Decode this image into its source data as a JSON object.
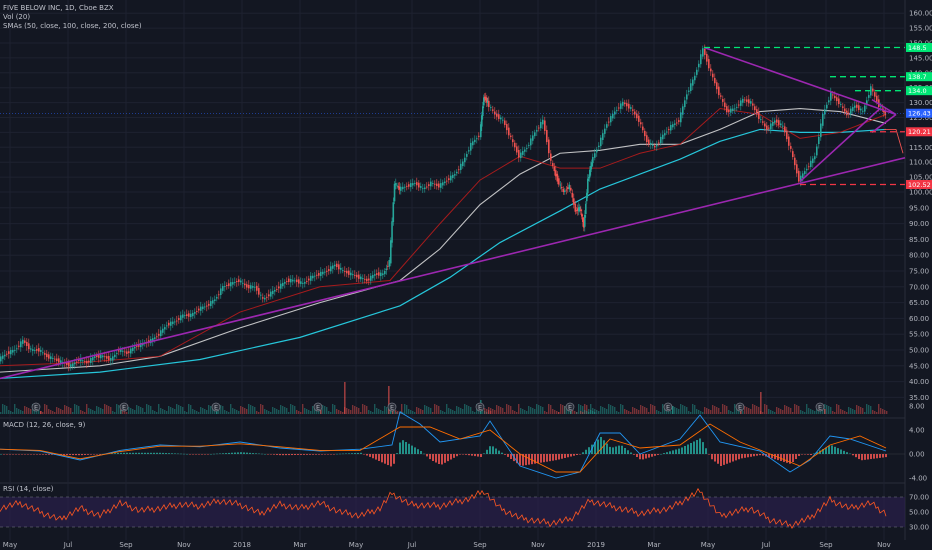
{
  "chart_data": [
    {
      "type": "candlestick",
      "title": "FIVE BELOW INC, 1D, Cboe BZX",
      "indicators": [
        "Vol (20)",
        "SMAs (50, close, 100, close, 200, close)"
      ],
      "x_ticks": [
        "May",
        "Jul",
        "Sep",
        "Nov",
        "2018",
        "Mar",
        "May",
        "Jul",
        "Sep",
        "Nov",
        "2019",
        "Mar",
        "May",
        "Jul",
        "Sep",
        "Nov"
      ],
      "y_ticks": [
        35,
        40,
        45,
        50,
        55,
        60,
        65,
        70,
        75,
        80,
        85,
        90,
        95,
        100,
        105,
        110,
        115,
        120,
        125,
        130,
        135,
        140,
        145,
        150,
        155,
        160
      ],
      "y_tick_labels": [
        "35.00",
        "40.00",
        "45.00",
        "50.00",
        "55.00",
        "60.00",
        "65.00",
        "70.00",
        "75.00",
        "80.00",
        "85.00",
        "90.00",
        "95.00",
        "100.00",
        "105.00",
        "110.00",
        "115.00",
        "120.00",
        "125.00",
        "130.00",
        "135.00",
        "140.00",
        "145.00",
        "150.00",
        "155.00",
        "160.00"
      ],
      "ylim": [
        32,
        161
      ],
      "price_path": [
        [
          0,
          47
        ],
        [
          8,
          49
        ],
        [
          16,
          50
        ],
        [
          24,
          53
        ],
        [
          32,
          50
        ],
        [
          40,
          50
        ],
        [
          48,
          48
        ],
        [
          56,
          47
        ],
        [
          64,
          46
        ],
        [
          72,
          45
        ],
        [
          80,
          47
        ],
        [
          88,
          46
        ],
        [
          96,
          48
        ],
        [
          104,
          48
        ],
        [
          112,
          47
        ],
        [
          120,
          50
        ],
        [
          128,
          49
        ],
        [
          136,
          51
        ],
        [
          144,
          52
        ],
        [
          152,
          53
        ],
        [
          160,
          55
        ],
        [
          168,
          58
        ],
        [
          176,
          59
        ],
        [
          184,
          61
        ],
        [
          192,
          61
        ],
        [
          200,
          63
        ],
        [
          208,
          64
        ],
        [
          216,
          66
        ],
        [
          224,
          70
        ],
        [
          232,
          71
        ],
        [
          240,
          72
        ],
        [
          248,
          70
        ],
        [
          256,
          70
        ],
        [
          264,
          66
        ],
        [
          272,
          68
        ],
        [
          280,
          70
        ],
        [
          288,
          72
        ],
        [
          296,
          72
        ],
        [
          304,
          71
        ],
        [
          312,
          73
        ],
        [
          320,
          74
        ],
        [
          328,
          75
        ],
        [
          336,
          77
        ],
        [
          344,
          75
        ],
        [
          352,
          74
        ],
        [
          360,
          73
        ],
        [
          368,
          72
        ],
        [
          376,
          74
        ],
        [
          384,
          74
        ],
        [
          390,
          78
        ],
        [
          395,
          103
        ],
        [
          400,
          101
        ],
        [
          408,
          102
        ],
        [
          416,
          103
        ],
        [
          424,
          101
        ],
        [
          432,
          103
        ],
        [
          440,
          102
        ],
        [
          448,
          104
        ],
        [
          456,
          106
        ],
        [
          464,
          110
        ],
        [
          472,
          116
        ],
        [
          480,
          119
        ],
        [
          484,
          132
        ],
        [
          488,
          130
        ],
        [
          496,
          126
        ],
        [
          504,
          124
        ],
        [
          512,
          118
        ],
        [
          520,
          112
        ],
        [
          528,
          115
        ],
        [
          536,
          120
        ],
        [
          544,
          124
        ],
        [
          552,
          110
        ],
        [
          558,
          104
        ],
        [
          564,
          100
        ],
        [
          570,
          102
        ],
        [
          576,
          94
        ],
        [
          580,
          95
        ],
        [
          584,
          89
        ],
        [
          588,
          104
        ],
        [
          592,
          110
        ],
        [
          600,
          116
        ],
        [
          608,
          123
        ],
        [
          616,
          127
        ],
        [
          624,
          130
        ],
        [
          632,
          128
        ],
        [
          640,
          124
        ],
        [
          648,
          117
        ],
        [
          656,
          115
        ],
        [
          664,
          119
        ],
        [
          672,
          122
        ],
        [
          680,
          124
        ],
        [
          688,
          133
        ],
        [
          696,
          139
        ],
        [
          704,
          148
        ],
        [
          712,
          140
        ],
        [
          720,
          133
        ],
        [
          728,
          127
        ],
        [
          736,
          128
        ],
        [
          744,
          131
        ],
        [
          752,
          130
        ],
        [
          760,
          125
        ],
        [
          768,
          121
        ],
        [
          776,
          124
        ],
        [
          784,
          122
        ],
        [
          792,
          114
        ],
        [
          800,
          104
        ],
        [
          808,
          108
        ],
        [
          816,
          112
        ],
        [
          824,
          126
        ],
        [
          832,
          133
        ],
        [
          840,
          130
        ],
        [
          848,
          126
        ],
        [
          856,
          129
        ],
        [
          864,
          127
        ],
        [
          872,
          135
        ],
        [
          880,
          129
        ],
        [
          886,
          126
        ]
      ],
      "sma50_path": [
        [
          0,
          45
        ],
        [
          80,
          46
        ],
        [
          160,
          48
        ],
        [
          240,
          62
        ],
        [
          320,
          70
        ],
        [
          390,
          72
        ],
        [
          440,
          90
        ],
        [
          480,
          104
        ],
        [
          520,
          112
        ],
        [
          560,
          108
        ],
        [
          600,
          108
        ],
        [
          640,
          113
        ],
        [
          680,
          116
        ],
        [
          720,
          128
        ],
        [
          760,
          126
        ],
        [
          800,
          118
        ],
        [
          840,
          120
        ],
        [
          886,
          126
        ]
      ],
      "sma100_path": [
        [
          0,
          43
        ],
        [
          100,
          45
        ],
        [
          160,
          48
        ],
        [
          240,
          57
        ],
        [
          320,
          65
        ],
        [
          400,
          72
        ],
        [
          440,
          82
        ],
        [
          480,
          96
        ],
        [
          520,
          106
        ],
        [
          560,
          113
        ],
        [
          600,
          114
        ],
        [
          640,
          116
        ],
        [
          680,
          116
        ],
        [
          720,
          121
        ],
        [
          760,
          127
        ],
        [
          800,
          128
        ],
        [
          840,
          127
        ],
        [
          886,
          123
        ]
      ],
      "sma200_path": [
        [
          0,
          41
        ],
        [
          100,
          43
        ],
        [
          200,
          47
        ],
        [
          300,
          54
        ],
        [
          400,
          64
        ],
        [
          450,
          73
        ],
        [
          500,
          84
        ],
        [
          560,
          94
        ],
        [
          600,
          101
        ],
        [
          640,
          106
        ],
        [
          680,
          111
        ],
        [
          720,
          117
        ],
        [
          760,
          121
        ],
        [
          800,
          120
        ],
        [
          840,
          120
        ],
        [
          886,
          121
        ]
      ],
      "trendlines": [
        {
          "color": "#9c27b0",
          "points": [
            [
              0,
              41
            ],
            [
              905,
              111.5
            ]
          ]
        },
        {
          "color": "#9c27b0",
          "points": [
            [
              704,
              148.5
            ],
            [
              896,
              126
            ]
          ]
        },
        {
          "color": "#9c27b0",
          "points": [
            [
              800,
              103.5
            ],
            [
              880,
              128
            ]
          ]
        },
        {
          "color": "#9c27b0",
          "points": [
            [
              872,
              131
            ],
            [
              896,
              126
            ]
          ]
        },
        {
          "color": "#9c27b0",
          "points": [
            [
              872,
              120
            ],
            [
              896,
              126
            ]
          ]
        }
      ],
      "levels": [
        {
          "value": 148.5,
          "color": "#00e676",
          "x_start": 704,
          "label": "148.5"
        },
        {
          "value": 138.7,
          "color": "#00e676",
          "x_start": 830,
          "label": "138.7"
        },
        {
          "value": 134.0,
          "color": "#00e676",
          "x_start": 855,
          "label": "134.0"
        },
        {
          "value": 126.43,
          "color": "#2962ff",
          "label": "126.43",
          "current": true
        },
        {
          "value": 120.21,
          "color": "#f23645",
          "x_start": 870,
          "label": "120.21"
        },
        {
          "value": 102.52,
          "color": "#f23645",
          "x_start": 800,
          "label": "102.52"
        }
      ],
      "volume_spikes": [
        [
          40,
          3
        ],
        [
          120,
          4
        ],
        [
          216,
          8
        ],
        [
          320,
          6
        ],
        [
          344,
          32
        ],
        [
          388,
          28
        ],
        [
          392,
          11
        ],
        [
          480,
          14
        ],
        [
          570,
          6
        ],
        [
          672,
          8
        ],
        [
          740,
          9
        ],
        [
          760,
          22
        ],
        [
          824,
          5
        ]
      ],
      "earnings_markers": [
        36,
        124,
        216,
        318,
        392,
        480,
        570,
        668,
        740,
        820
      ]
    },
    {
      "type": "line",
      "title": "MACD (12, 26, close, 9)",
      "y_ticks": [
        -4,
        0,
        4,
        8
      ],
      "y_tick_labels": [
        "-4.00",
        "0.00",
        "4.00",
        "8.00"
      ],
      "ylim": [
        -6,
        9.5
      ],
      "macd_path": [
        [
          0,
          0.8
        ],
        [
          40,
          0.5
        ],
        [
          80,
          -1
        ],
        [
          120,
          0.6
        ],
        [
          160,
          1.5
        ],
        [
          200,
          1.2
        ],
        [
          240,
          2
        ],
        [
          280,
          1
        ],
        [
          320,
          0.5
        ],
        [
          360,
          0.8
        ],
        [
          392,
          1.5
        ],
        [
          400,
          7
        ],
        [
          420,
          5
        ],
        [
          440,
          2
        ],
        [
          480,
          3
        ],
        [
          490,
          5.5
        ],
        [
          520,
          -2
        ],
        [
          556,
          -4
        ],
        [
          580,
          -3
        ],
        [
          600,
          3.5
        ],
        [
          620,
          3.5
        ],
        [
          640,
          0
        ],
        [
          680,
          2.5
        ],
        [
          700,
          6.5
        ],
        [
          720,
          2
        ],
        [
          760,
          0.5
        ],
        [
          790,
          -3
        ],
        [
          810,
          -1
        ],
        [
          830,
          3
        ],
        [
          850,
          2.5
        ],
        [
          886,
          0.5
        ]
      ],
      "signal_path": [
        [
          0,
          0.8
        ],
        [
          40,
          0.6
        ],
        [
          80,
          -0.8
        ],
        [
          120,
          0.4
        ],
        [
          160,
          1.3
        ],
        [
          200,
          1.3
        ],
        [
          240,
          1.7
        ],
        [
          280,
          1.2
        ],
        [
          320,
          0.6
        ],
        [
          360,
          0.6
        ],
        [
          400,
          4.5
        ],
        [
          430,
          4.5
        ],
        [
          460,
          2.5
        ],
        [
          490,
          4
        ],
        [
          520,
          0
        ],
        [
          556,
          -3
        ],
        [
          580,
          -3
        ],
        [
          610,
          2.5
        ],
        [
          640,
          1
        ],
        [
          680,
          1.5
        ],
        [
          710,
          5
        ],
        [
          740,
          2
        ],
        [
          770,
          0
        ],
        [
          800,
          -2
        ],
        [
          830,
          1.5
        ],
        [
          860,
          3
        ],
        [
          886,
          1
        ]
      ]
    },
    {
      "type": "line",
      "title": "RSI (14, close)",
      "y_ticks": [
        30,
        50,
        70
      ],
      "y_tick_labels": [
        "30.00",
        "50.00",
        "70.00"
      ],
      "ylim": [
        25,
        80
      ],
      "bands": [
        30,
        70
      ],
      "rsi_path": [
        [
          0,
          55
        ],
        [
          20,
          62
        ],
        [
          40,
          50
        ],
        [
          60,
          40
        ],
        [
          80,
          55
        ],
        [
          100,
          45
        ],
        [
          120,
          62
        ],
        [
          140,
          52
        ],
        [
          160,
          55
        ],
        [
          180,
          60
        ],
        [
          200,
          58
        ],
        [
          220,
          65
        ],
        [
          240,
          60
        ],
        [
          260,
          48
        ],
        [
          280,
          60
        ],
        [
          300,
          55
        ],
        [
          320,
          62
        ],
        [
          340,
          50
        ],
        [
          360,
          45
        ],
        [
          380,
          55
        ],
        [
          392,
          75
        ],
        [
          410,
          60
        ],
        [
          440,
          58
        ],
        [
          470,
          68
        ],
        [
          484,
          78
        ],
        [
          500,
          55
        ],
        [
          520,
          42
        ],
        [
          550,
          35
        ],
        [
          570,
          40
        ],
        [
          590,
          65
        ],
        [
          610,
          58
        ],
        [
          640,
          48
        ],
        [
          670,
          55
        ],
        [
          700,
          78
        ],
        [
          720,
          45
        ],
        [
          750,
          55
        ],
        [
          770,
          40
        ],
        [
          790,
          32
        ],
        [
          810,
          42
        ],
        [
          830,
          66
        ],
        [
          850,
          55
        ],
        [
          870,
          62
        ],
        [
          886,
          48
        ]
      ]
    }
  ],
  "time_labels": [
    "May",
    "Jul",
    "Sep",
    "Nov",
    "2018",
    "Mar",
    "May",
    "Jul",
    "Sep",
    "Nov",
    "2019",
    "Mar",
    "May",
    "Jul",
    "Sep",
    "Nov"
  ],
  "price_labels": {
    "current": "126.43",
    "r1": "120.21",
    "r2": "102.52",
    "g1": "148.5",
    "g2": "138.7",
    "g3": "134.0"
  },
  "colors": {
    "background": "#131722",
    "up": "#26a69a",
    "down": "#ef5350",
    "sma50": "#b71c1c",
    "sma100": "#e0e0e0",
    "sma200": "#26c6da",
    "trend": "#9c27b0",
    "macd": "#2196f3",
    "signal": "#ff6d00",
    "rsi": "#ff5722",
    "rsi_band": "#2a1f4a"
  }
}
